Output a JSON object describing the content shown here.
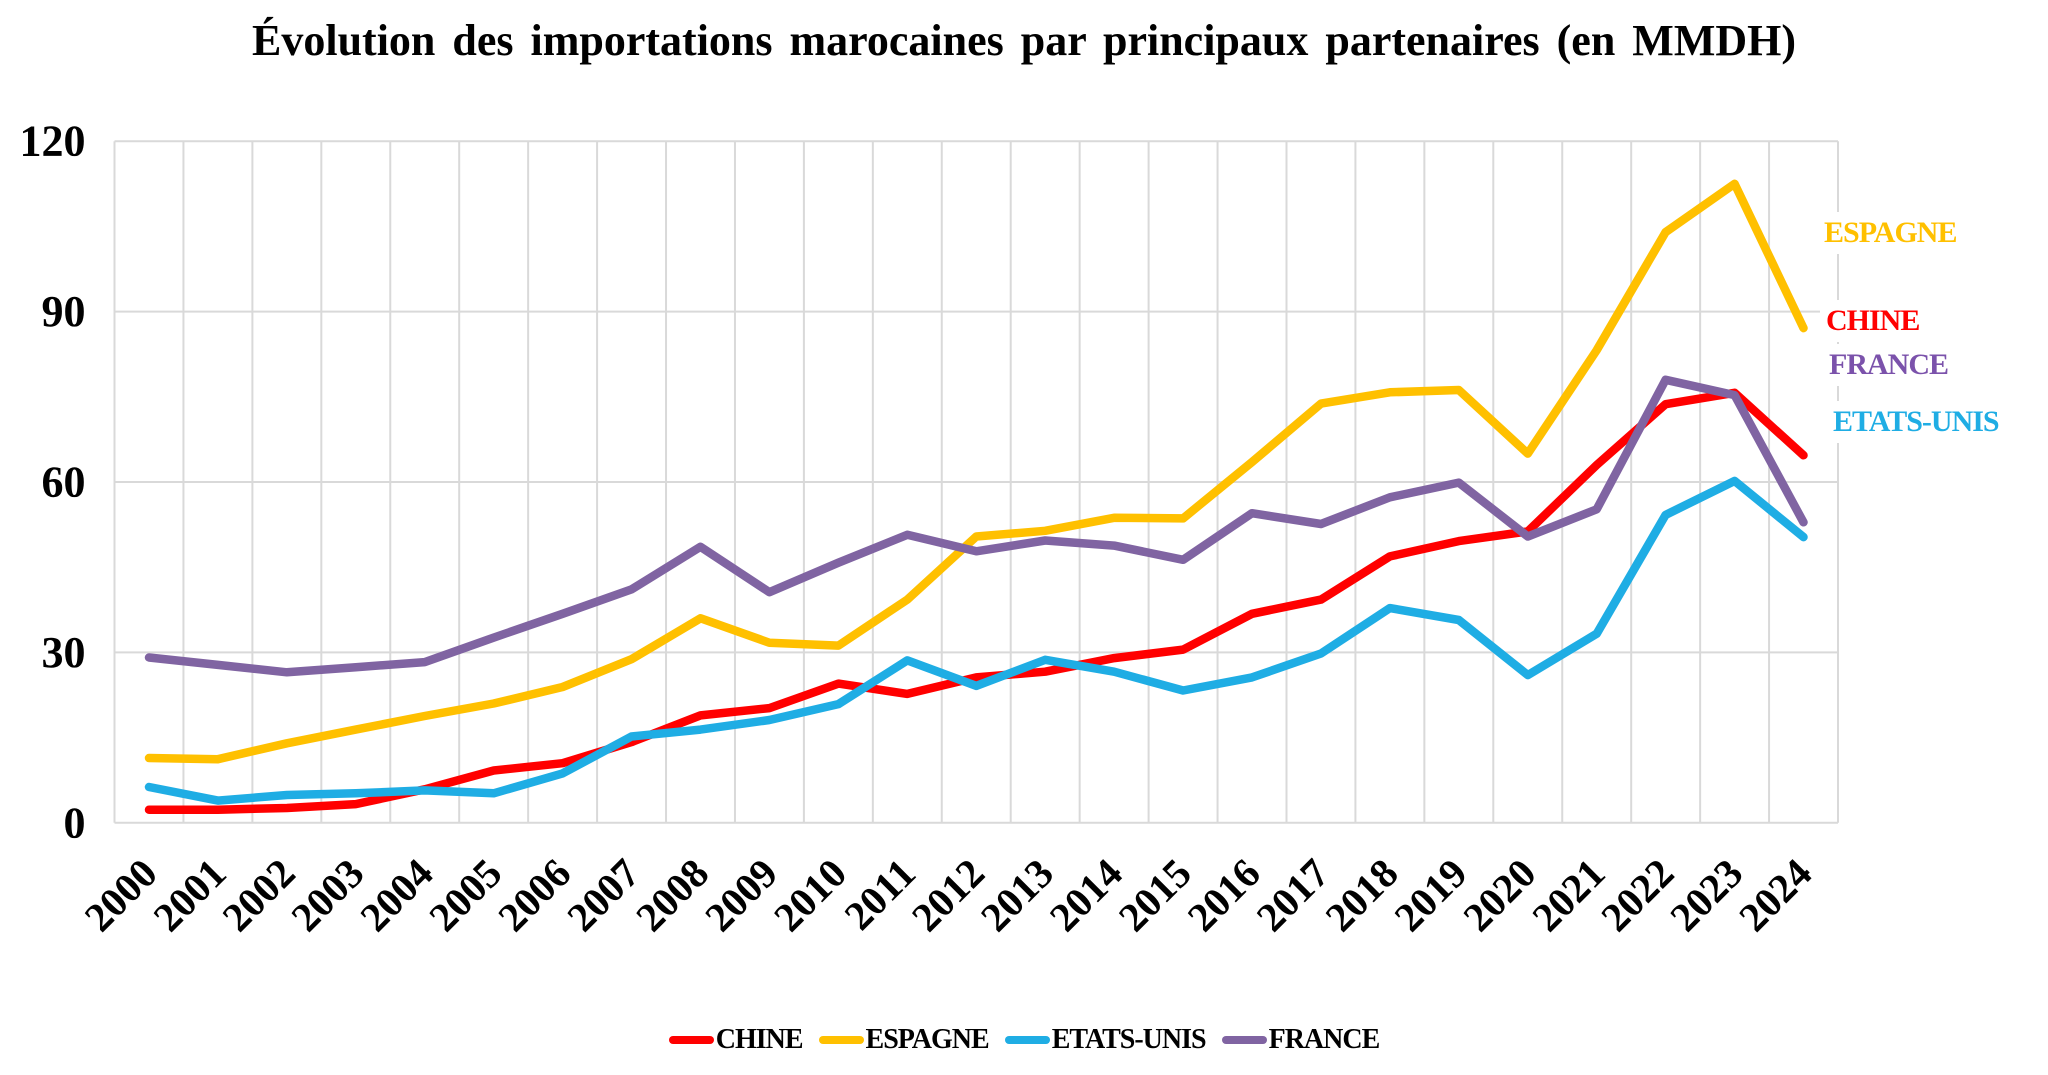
{
  "chart_data": {
    "type": "line",
    "title": "Évolution des importations marocaines par principaux partenaires (en MMDH)",
    "xlabel": "",
    "ylabel": "",
    "ylim": [
      0,
      120
    ],
    "ytick_step": 30,
    "yticks": [
      "0",
      "30",
      "60",
      "90",
      "120"
    ],
    "grid": true,
    "gridline_color": "#D9D9D9",
    "categories": [
      "2000",
      "2001",
      "2002",
      "2003",
      "2004",
      "2005",
      "2006",
      "2007",
      "2008",
      "2009",
      "2010",
      "2011",
      "2012",
      "2013",
      "2014",
      "2015",
      "2016",
      "2017",
      "2018",
      "2019",
      "2020",
      "2021",
      "2022",
      "2023",
      "2024"
    ],
    "series": [
      {
        "name": "CHINE",
        "color": "#FF0000",
        "values": [
          2.3,
          2.3,
          2.6,
          3.3,
          5.9,
          9.2,
          10.5,
          14.2,
          18.9,
          20.2,
          24.5,
          22.7,
          25.6,
          26.6,
          29.0,
          30.5,
          36.8,
          39.3,
          46.9,
          49.6,
          51.3,
          63.0,
          73.7,
          75.7,
          64.7
        ]
      },
      {
        "name": "ESPAGNE",
        "color": "#FFC000",
        "values": [
          11.4,
          11.2,
          14.0,
          16.4,
          18.8,
          21.0,
          23.9,
          28.8,
          36.0,
          31.7,
          31.2,
          39.3,
          50.4,
          51.4,
          53.7,
          53.6,
          63.5,
          73.8,
          75.8,
          76.2,
          65.0,
          83.2,
          104.0,
          112.5,
          87.1
        ]
      },
      {
        "name": "ETATS-UNIS",
        "color": "#1FADE4",
        "values": [
          6.3,
          3.9,
          4.9,
          5.2,
          5.7,
          5.2,
          8.7,
          15.2,
          16.4,
          18.1,
          20.9,
          28.6,
          24.1,
          28.7,
          26.6,
          23.3,
          25.6,
          29.8,
          37.8,
          35.7,
          26.0,
          33.3,
          54.2,
          60.2,
          50.3
        ]
      },
      {
        "name": "FRANCE",
        "color": "#8064A2",
        "values": [
          29.1,
          27.8,
          26.5,
          27.4,
          28.3,
          32.6,
          36.8,
          41.1,
          48.6,
          40.6,
          45.8,
          50.7,
          47.8,
          49.7,
          48.8,
          46.3,
          54.5,
          52.6,
          57.3,
          59.9,
          50.4,
          55.2,
          78.0,
          75.3,
          52.9
        ]
      }
    ],
    "legend": [
      "CHINE",
      "ESPAGNE",
      "ETATS-UNIS",
      "FRANCE"
    ],
    "legend_position": "bottom",
    "side_labels": [
      {
        "text": "ESPAGNE",
        "color": "#FFC000"
      },
      {
        "text": "CHINE",
        "color": "#FF0000"
      },
      {
        "text": "FRANCE",
        "color": "#7B52AB"
      },
      {
        "text": "ETATS-UNIS",
        "color": "#1FADE4"
      }
    ]
  }
}
